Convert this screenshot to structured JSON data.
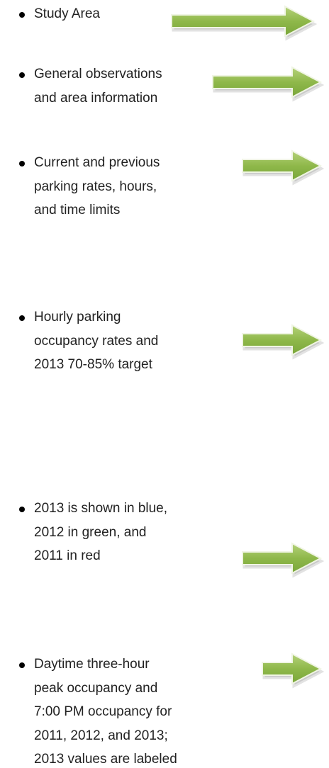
{
  "items": [
    {
      "lines": [
        "Study Area"
      ]
    },
    {
      "lines": [
        "General observations",
        "and area information"
      ]
    },
    {
      "lines": [
        "Current and previous",
        "parking rates, hours,",
        "and time limits"
      ]
    },
    {
      "lines": [
        "Hourly parking",
        "occupancy rates and",
        "2013 70-85% target"
      ]
    },
    {
      "lines": [
        "2013 is shown in blue,",
        "2012 in green, and",
        "2011 in red"
      ]
    },
    {
      "lines": [
        "Daytime three-hour",
        "peak occupancy and",
        "7:00 PM occupancy for",
        "2011, 2012, and 2013;",
        "2013 values are labeled"
      ]
    }
  ]
}
